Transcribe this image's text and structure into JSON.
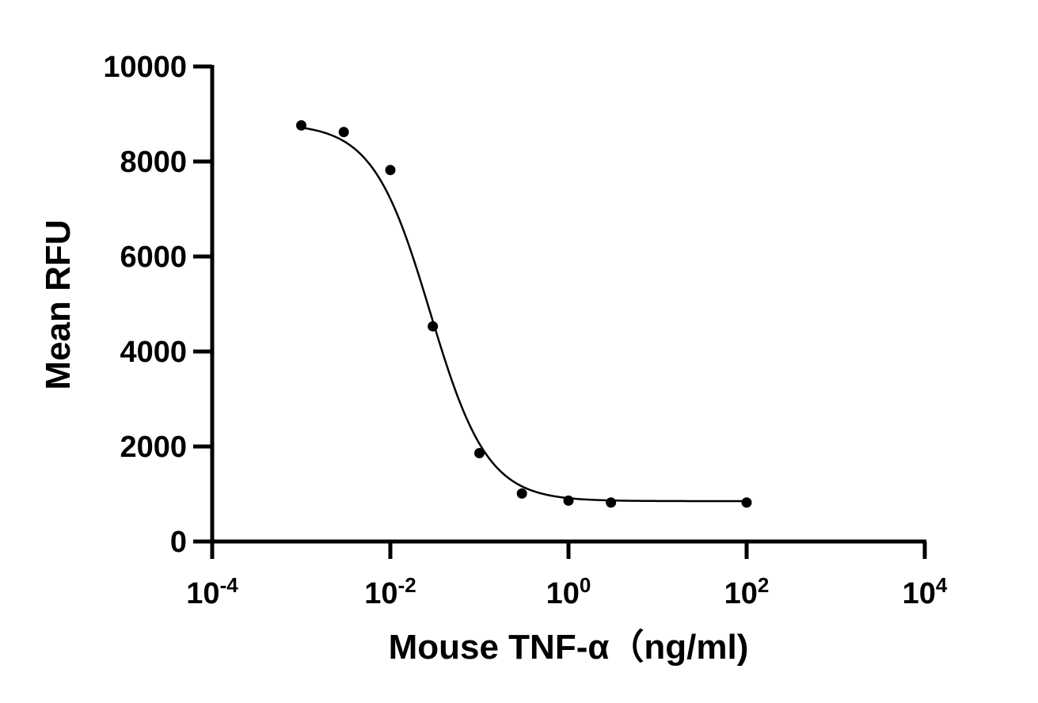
{
  "chart_data": {
    "type": "scatter",
    "xlabel": "Mouse TNF-α（ng/ml)",
    "ylabel": "Mean RFU",
    "x_scale": "log",
    "xlim": [
      0.0001,
      10000
    ],
    "ylim": [
      0,
      10000
    ],
    "x_ticks": [
      {
        "base": "10",
        "exp": "-4",
        "value": 0.0001
      },
      {
        "base": "10",
        "exp": "-2",
        "value": 0.01
      },
      {
        "base": "10",
        "exp": "0",
        "value": 1
      },
      {
        "base": "10",
        "exp": "2",
        "value": 100
      },
      {
        "base": "10",
        "exp": "4",
        "value": 10000
      }
    ],
    "y_ticks": [
      "0",
      "2000",
      "4000",
      "6000",
      "8000",
      "10000"
    ],
    "grid": false,
    "legend": "none",
    "points": [
      {
        "x": 0.001,
        "y": 8760
      },
      {
        "x": 0.003,
        "y": 8620
      },
      {
        "x": 0.01,
        "y": 7820
      },
      {
        "x": 0.03,
        "y": 4530
      },
      {
        "x": 0.1,
        "y": 1860
      },
      {
        "x": 0.3,
        "y": 1010
      },
      {
        "x": 1,
        "y": 860
      },
      {
        "x": 3,
        "y": 820
      },
      {
        "x": 100,
        "y": 820
      }
    ],
    "fit_curve": {
      "model": "four-parameter logistic",
      "bottom": 850,
      "top": 8800,
      "ec50": 0.028,
      "hill_slope": -1.35,
      "x_range": [
        0.001,
        100
      ]
    },
    "colors": {
      "marks": "#000000",
      "axes": "#000000",
      "background": "#ffffff"
    }
  }
}
